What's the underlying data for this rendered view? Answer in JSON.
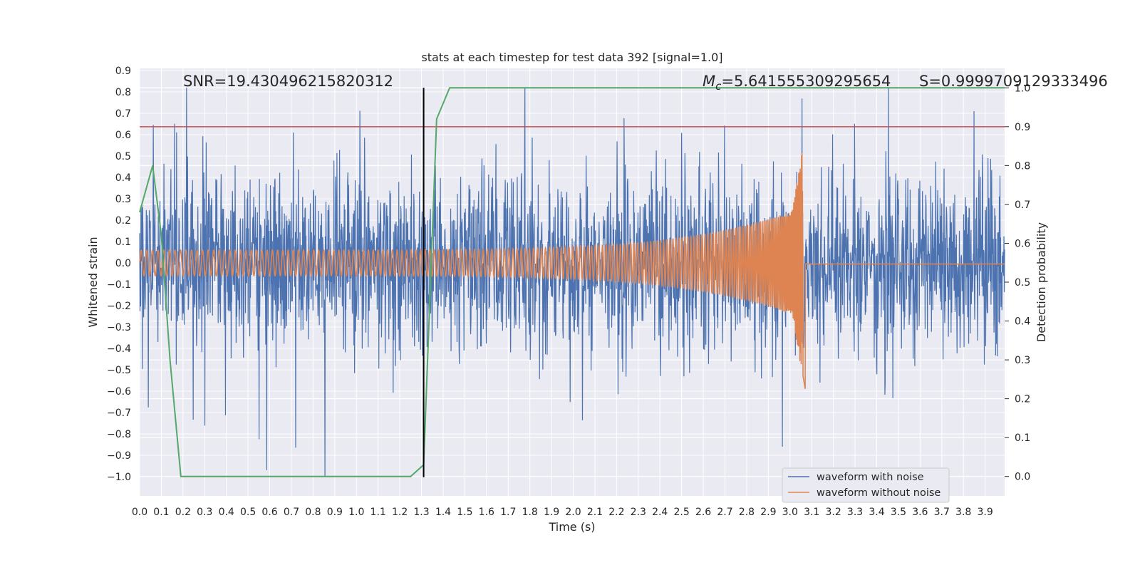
{
  "chart_data": {
    "type": "line",
    "title": "stats at each timestep for test data 392 [signal=1.0]",
    "xlabel": "Time (s)",
    "ylabel": "Whitened strain",
    "ylabel_right": "Detection probability",
    "xlim": [
      0.0,
      3.99
    ],
    "ylim": [
      -1.09,
      0.91
    ],
    "ylim_right": [
      -0.05,
      1.05
    ],
    "x_ticks": [
      "0.0",
      "0.1",
      "0.2",
      "0.3",
      "0.4",
      "0.5",
      "0.6",
      "0.7",
      "0.8",
      "0.9",
      "1.0",
      "1.1",
      "1.2",
      "1.3",
      "1.4",
      "1.5",
      "1.6",
      "1.7",
      "1.8",
      "1.9",
      "2.0",
      "2.1",
      "2.2",
      "2.3",
      "2.4",
      "2.5",
      "2.6",
      "2.7",
      "2.8",
      "2.9",
      "3.0",
      "3.1",
      "3.2",
      "3.3",
      "3.4",
      "3.5",
      "3.6",
      "3.7",
      "3.8",
      "3.9"
    ],
    "y_ticks": [
      "0.9",
      "0.8",
      "0.7",
      "0.6",
      "0.5",
      "0.4",
      "0.3",
      "0.2",
      "0.1",
      "0.0",
      "−0.1",
      "−0.2",
      "−0.3",
      "−0.4",
      "−0.5",
      "−0.6",
      "−0.7",
      "−0.8",
      "−0.9",
      "−1.0"
    ],
    "y_right_ticks": [
      "1.0",
      "0.9",
      "0.8",
      "0.7",
      "0.6",
      "0.5",
      "0.4",
      "0.3",
      "0.2",
      "0.1",
      "0.0"
    ],
    "annotations": {
      "snr": "SNR=19.430496215820312",
      "mc_symbol": "M",
      "mc_sub": "c",
      "mc_value": "=5.641555309295654",
      "s": "S=0.9999709129333496"
    },
    "threshold_right": 0.9,
    "marker_x": 1.31,
    "noise": {
      "name": "waveform with noise",
      "color": "#4c72b0",
      "baseline_std": 0.2,
      "max": 0.82,
      "min": -1.0
    },
    "clean": {
      "name": "waveform without noise",
      "color": "#dd8452",
      "start_amplitude": 0.06,
      "peak_amplitude": 0.55,
      "merger_time": 3.06
    },
    "probability": {
      "color": "#55a868",
      "x": [
        0.0,
        0.06,
        0.1,
        0.14,
        0.19,
        0.25,
        1.25,
        1.31,
        1.37,
        1.43,
        3.99
      ],
      "y": [
        0.68,
        0.8,
        0.62,
        0.3,
        0.0,
        0.0,
        0.0,
        0.03,
        0.92,
        1.0,
        1.0
      ]
    },
    "threshold_color": "#c44e52",
    "marker_color": "#000000",
    "legend_position": "lower-right"
  }
}
